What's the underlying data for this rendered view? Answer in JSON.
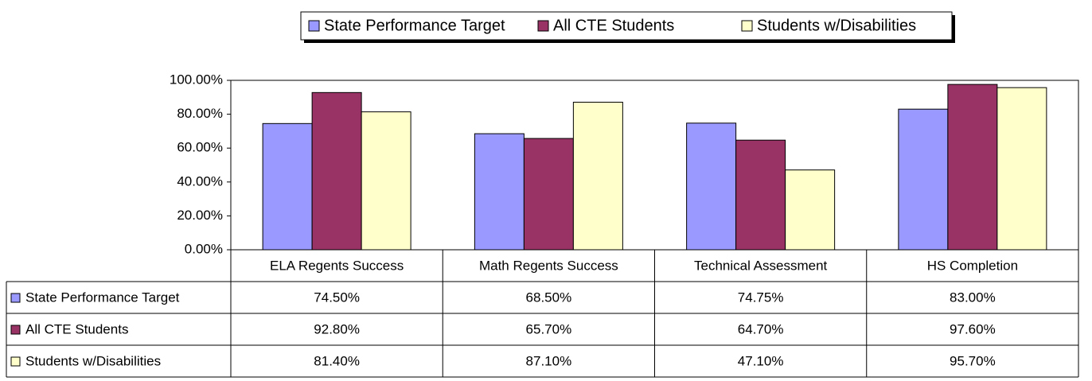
{
  "chart_data": {
    "type": "bar",
    "categories": [
      "ELA Regents Success",
      "Math Regents Success",
      "Technical Assessment",
      "HS Completion"
    ],
    "series": [
      {
        "name": "State Performance Target",
        "color": "#9999ff",
        "values": [
          74.5,
          68.5,
          74.75,
          83.0
        ],
        "value_labels": [
          "74.50%",
          "68.50%",
          "74.75%",
          "83.00%"
        ]
      },
      {
        "name": "All CTE Students",
        "color": "#993366",
        "values": [
          92.8,
          65.7,
          64.7,
          97.6
        ],
        "value_labels": [
          "92.80%",
          "65.70%",
          "64.70%",
          "97.60%"
        ]
      },
      {
        "name": "Students w/Disabilities",
        "color": "#ffffcc",
        "values": [
          81.4,
          87.1,
          47.1,
          95.7
        ],
        "value_labels": [
          "81.40%",
          "87.10%",
          "47.10%",
          "95.70%"
        ]
      }
    ],
    "ylim": [
      0,
      100
    ],
    "yticks": [
      {
        "value": 0,
        "label": "0.00%"
      },
      {
        "value": 20,
        "label": "20.00%"
      },
      {
        "value": 40,
        "label": "40.00%"
      },
      {
        "value": 60,
        "label": "60.00%"
      },
      {
        "value": 80,
        "label": "80.00%"
      },
      {
        "value": 100,
        "label": "100.00%"
      }
    ],
    "grid": false,
    "legend": "top",
    "data_table": true
  }
}
